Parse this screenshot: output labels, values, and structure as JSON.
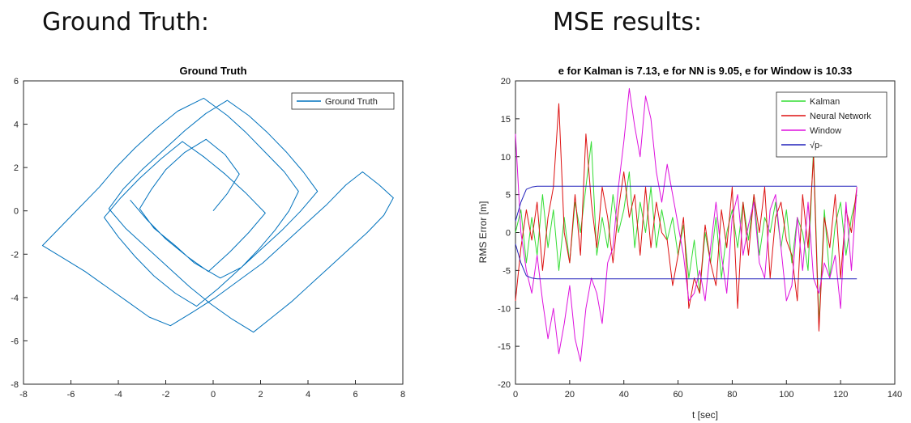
{
  "page": {
    "left_heading": "Ground Truth:",
    "right_heading": "MSE results:"
  },
  "colors": {
    "ground_truth": "#0072BD",
    "kalman": "#33dd33",
    "neural_network": "#dd1111",
    "window": "#dd11dd",
    "sqrt_p": "#2222bb"
  },
  "chart_data": [
    {
      "type": "line",
      "title": "Ground Truth",
      "xlabel": "",
      "ylabel": "",
      "xlim": [
        -8,
        8
      ],
      "ylim": [
        -8,
        6
      ],
      "xticks": [
        "-8",
        "-6",
        "-4",
        "-2",
        "0",
        "2",
        "4",
        "6",
        "8"
      ],
      "yticks": [
        "6",
        "4",
        "2",
        "0",
        "-2",
        "-4",
        "-6",
        "-8"
      ],
      "grid": false,
      "legend": "top-right",
      "series": [
        {
          "name": "Ground Truth",
          "x": [
            0.0,
            0.6,
            1.1,
            0.5,
            -0.3,
            -1.2,
            -2.0,
            -2.6,
            -3.1,
            -2.5,
            -1.6,
            -0.8,
            0.3,
            1.2,
            1.9,
            2.6,
            3.2,
            3.6,
            3.0,
            2.2,
            1.4,
            0.6,
            -0.4,
            -1.5,
            -2.4,
            -3.3,
            -4.1,
            -4.8,
            -5.6,
            -6.4,
            -7.2,
            -6.3,
            -5.4,
            -4.5,
            -3.6,
            -2.7,
            -1.8,
            -0.9,
            0.1,
            1.1,
            2.1,
            3.0,
            3.9,
            4.8,
            5.6,
            6.3,
            7.0,
            7.6,
            7.2,
            6.5,
            5.7,
            4.9,
            4.1,
            3.3,
            2.5,
            1.7,
            0.8,
            -0.1,
            -1.0,
            -1.9,
            -2.8,
            -3.7,
            -4.4,
            -3.8,
            -3.0,
            -2.1,
            -1.2,
            -0.3,
            0.6,
            1.5,
            2.3,
            3.1,
            3.8,
            4.4,
            3.7,
            2.9,
            2.0,
            1.1,
            0.2,
            -0.7,
            -1.6,
            -2.5,
            -3.3,
            -4.0,
            -4.6,
            -3.9,
            -3.1,
            -2.2,
            -1.3,
            -0.4,
            0.5,
            1.4,
            2.2,
            1.5,
            0.7,
            -0.2,
            -1.1,
            -2.0,
            -2.8,
            -3.5
          ],
          "y": [
            0.0,
            0.8,
            1.7,
            2.6,
            3.3,
            2.7,
            1.9,
            1.0,
            0.1,
            -0.8,
            -1.6,
            -2.4,
            -3.1,
            -2.6,
            -1.8,
            -0.9,
            0.0,
            0.9,
            1.8,
            2.7,
            3.6,
            4.4,
            5.2,
            4.6,
            3.8,
            2.9,
            2.0,
            1.1,
            0.2,
            -0.7,
            -1.6,
            -2.2,
            -2.8,
            -3.5,
            -4.2,
            -4.9,
            -5.3,
            -4.7,
            -4.0,
            -3.2,
            -2.4,
            -1.5,
            -0.6,
            0.3,
            1.2,
            1.8,
            1.2,
            0.6,
            -0.2,
            -1.0,
            -1.8,
            -2.6,
            -3.4,
            -4.2,
            -4.9,
            -5.6,
            -5.0,
            -4.3,
            -3.5,
            -2.6,
            -1.7,
            -0.8,
            0.1,
            1.0,
            1.9,
            2.8,
            3.7,
            4.5,
            5.1,
            4.4,
            3.6,
            2.7,
            1.8,
            0.9,
            0.0,
            -0.9,
            -1.8,
            -2.7,
            -3.6,
            -4.4,
            -3.8,
            -3.0,
            -2.1,
            -1.2,
            -0.3,
            0.6,
            1.5,
            2.4,
            3.2,
            2.5,
            1.7,
            0.8,
            -0.1,
            -1.0,
            -1.9,
            -2.8,
            -2.1,
            -1.3,
            -0.4,
            0.5
          ]
        }
      ]
    },
    {
      "type": "line",
      "title": "e for Kalman is 7.13, e for NN is 9.05, e for Window is 10.33",
      "xlabel": "t [sec]",
      "ylabel": "RMS Error [m]",
      "xlim": [
        0,
        140
      ],
      "ylim": [
        -20,
        20
      ],
      "xticks": [
        "0",
        "20",
        "40",
        "60",
        "80",
        "100",
        "120",
        "140"
      ],
      "yticks": [
        "20",
        "15",
        "10",
        "5",
        "0",
        "-5",
        "-10",
        "-15",
        "-20"
      ],
      "grid": false,
      "legend": "top-right",
      "x": [
        0,
        2,
        4,
        6,
        8,
        10,
        12,
        14,
        16,
        18,
        20,
        22,
        24,
        26,
        28,
        30,
        32,
        34,
        36,
        38,
        40,
        42,
        44,
        46,
        48,
        50,
        52,
        54,
        56,
        58,
        60,
        62,
        64,
        66,
        68,
        70,
        72,
        74,
        76,
        78,
        80,
        82,
        84,
        86,
        88,
        90,
        92,
        94,
        96,
        98,
        100,
        102,
        104,
        106,
        108,
        110,
        112,
        114,
        116,
        118,
        120,
        122,
        124,
        126
      ],
      "series": [
        {
          "name": "Kalman",
          "values": [
            0,
            3,
            -4,
            2,
            -3,
            5,
            -2,
            3,
            -5,
            2,
            -4,
            4,
            0,
            6,
            12,
            -3,
            2,
            -2,
            5,
            0,
            3,
            8,
            -2,
            4,
            0,
            6,
            -2,
            3,
            -1,
            2,
            -3,
            1,
            -6,
            -1,
            -8,
            0,
            -4,
            2,
            -6,
            0,
            3,
            -2,
            4,
            -1,
            5,
            -3,
            2,
            0,
            4,
            -2,
            3,
            -4,
            2,
            0,
            -5,
            11,
            -12,
            3,
            -6,
            1,
            4,
            -3,
            2,
            5
          ]
        },
        {
          "name": "Neural Network",
          "values": [
            -9,
            -2,
            3,
            -1,
            4,
            -5,
            2,
            6,
            17,
            0,
            -4,
            5,
            -3,
            13,
            4,
            -2,
            6,
            2,
            -4,
            3,
            8,
            2,
            5,
            -3,
            6,
            -2,
            4,
            0,
            -1,
            -7,
            -3,
            2,
            -10,
            -6,
            -8,
            1,
            -4,
            -7,
            3,
            -2,
            6,
            -10,
            4,
            -3,
            5,
            0,
            6,
            -6,
            2,
            4,
            -1,
            -3,
            -9,
            5,
            -2,
            10,
            -13,
            2,
            -2,
            5,
            -6,
            3,
            0,
            6
          ]
        },
        {
          "name": "Window",
          "values": [
            13,
            0,
            -5,
            -8,
            -3,
            -9,
            -14,
            -10,
            -16,
            -12,
            -7,
            -14,
            -17,
            -10,
            -6,
            -8,
            -12,
            -4,
            -2,
            6,
            12,
            19,
            14,
            10,
            18,
            15,
            8,
            4,
            9,
            5,
            1,
            -3,
            -9,
            -8,
            -5,
            -9,
            -2,
            4,
            -3,
            -8,
            2,
            5,
            -3,
            1,
            4,
            -4,
            -6,
            3,
            5,
            -2,
            -9,
            -7,
            2,
            -5,
            4,
            -6,
            -8,
            -4,
            -6,
            -3,
            -10,
            4,
            -5,
            6
          ]
        },
        {
          "name": "√p-",
          "values": [
            1.5,
            4,
            5.7,
            6,
            6.1,
            6.1,
            6.1,
            6.1,
            6.1,
            6.1,
            6.1,
            6.1,
            6.1,
            6.1,
            6.1,
            6.1,
            6.1,
            6.1,
            6.1,
            6.1,
            6.1,
            6.1,
            6.1,
            6.1,
            6.1,
            6.1,
            6.1,
            6.1,
            6.1,
            6.1,
            6.1,
            6.1,
            6.1,
            6.1,
            6.1,
            6.1,
            6.1,
            6.1,
            6.1,
            6.1,
            6.1,
            6.1,
            6.1,
            6.1,
            6.1,
            6.1,
            6.1,
            6.1,
            6.1,
            6.1,
            6.1,
            6.1,
            6.1,
            6.1,
            6.1,
            6.1,
            6.1,
            6.1,
            6.1,
            6.1,
            6.1,
            6.1,
            6.1,
            6.1
          ]
        },
        {
          "name": "",
          "values": [
            -1.5,
            -4,
            -5.7,
            -6,
            -6.1,
            -6.1,
            -6.1,
            -6.1,
            -6.1,
            -6.1,
            -6.1,
            -6.1,
            -6.1,
            -6.1,
            -6.1,
            -6.1,
            -6.1,
            -6.1,
            -6.1,
            -6.1,
            -6.1,
            -6.1,
            -6.1,
            -6.1,
            -6.1,
            -6.1,
            -6.1,
            -6.1,
            -6.1,
            -6.1,
            -6.1,
            -6.1,
            -6.1,
            -6.1,
            -6.1,
            -6.1,
            -6.1,
            -6.1,
            -6.1,
            -6.1,
            -6.1,
            -6.1,
            -6.1,
            -6.1,
            -6.1,
            -6.1,
            -6.1,
            -6.1,
            -6.1,
            -6.1,
            -6.1,
            -6.1,
            -6.1,
            -6.1,
            -6.1,
            -6.1,
            -6.1,
            -6.1,
            -6.1,
            -6.1,
            -6.1,
            -6.1,
            -6.1,
            -6.1
          ]
        }
      ]
    }
  ]
}
